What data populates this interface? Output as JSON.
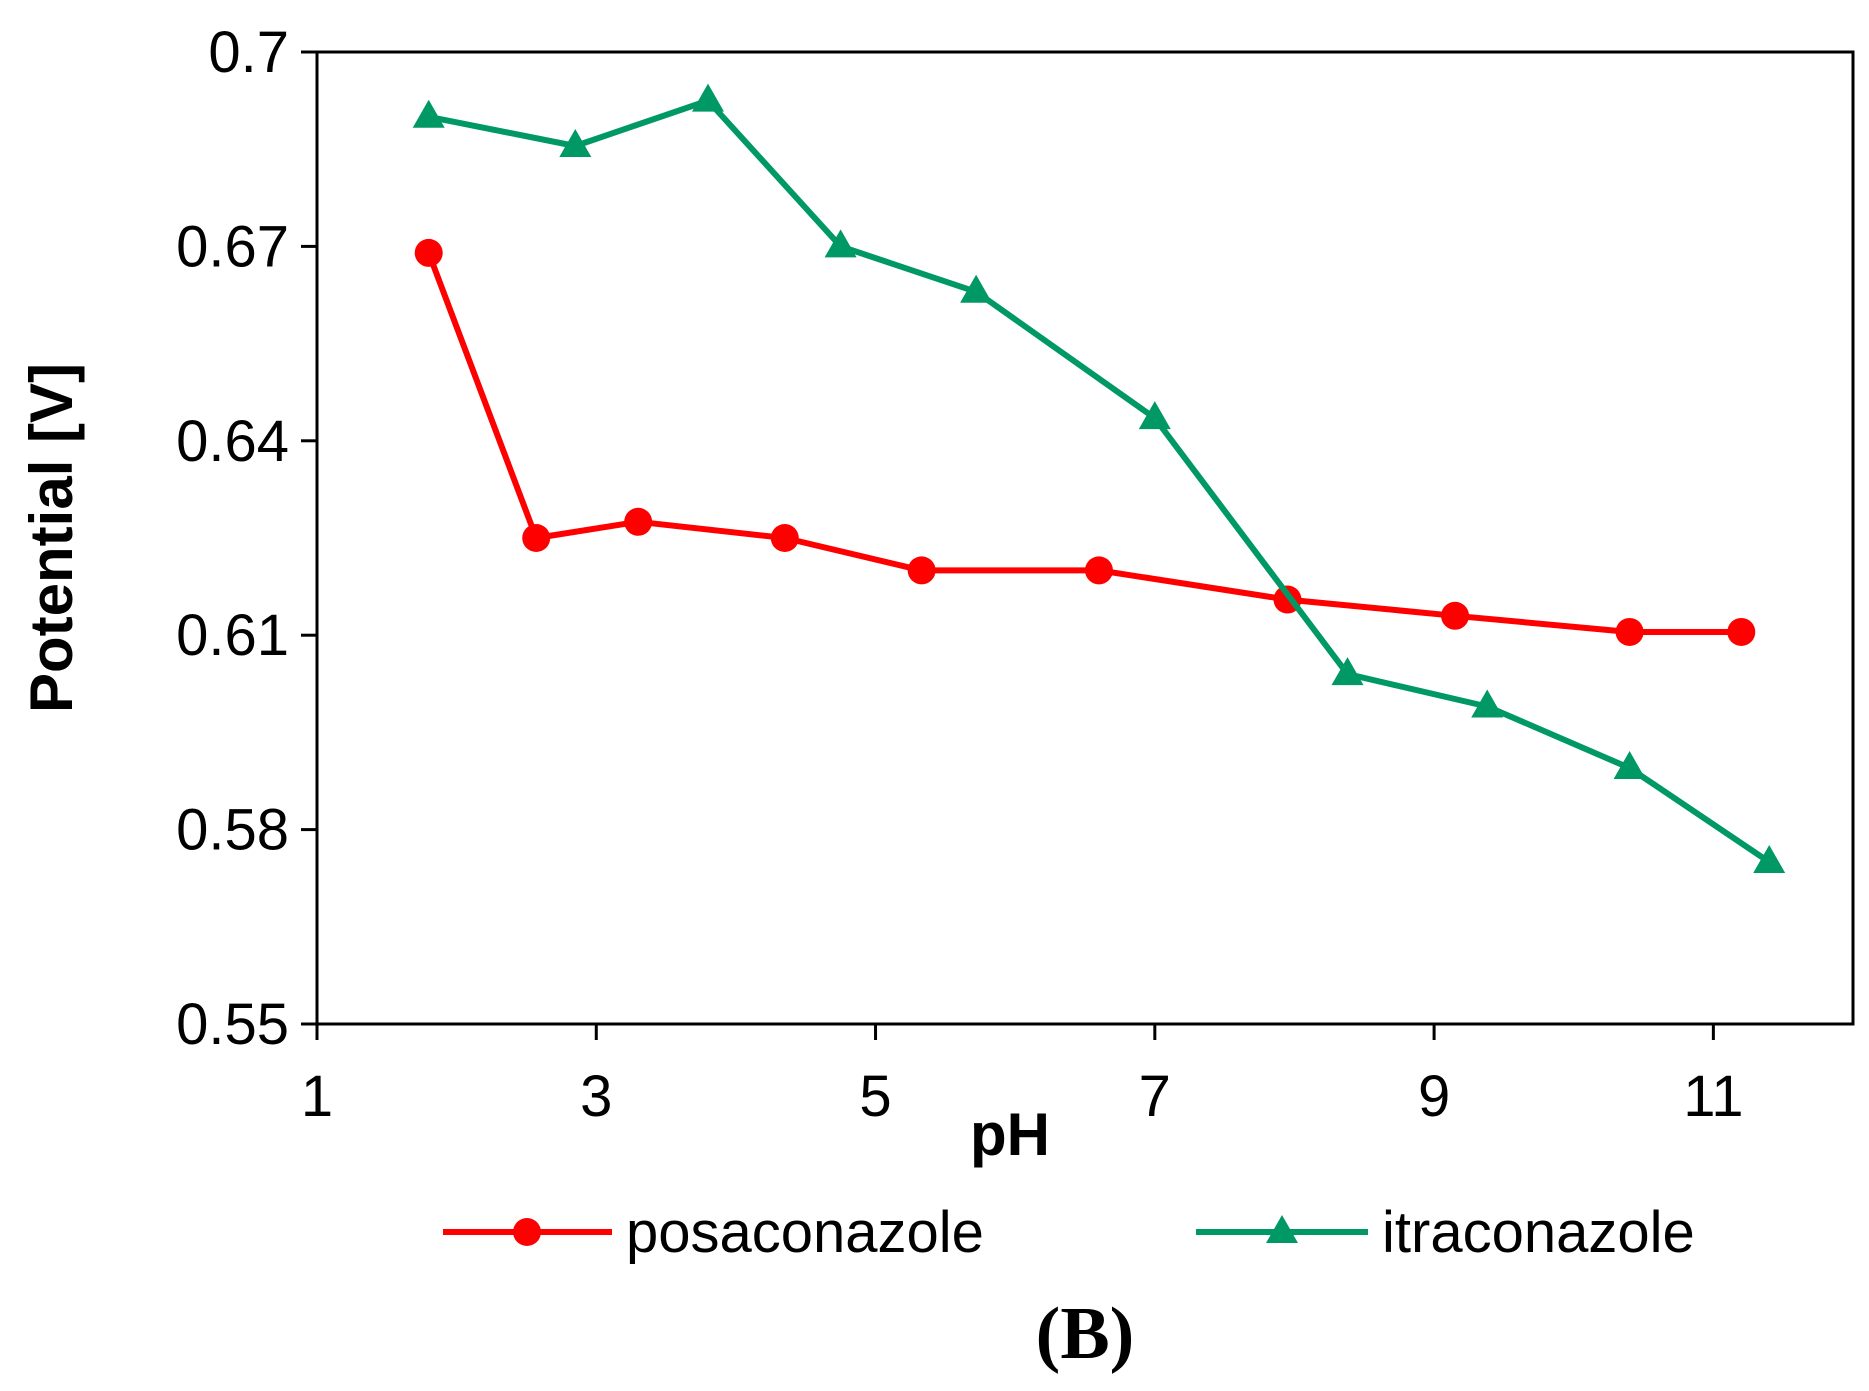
{
  "chart_data": {
    "type": "line",
    "title": "",
    "panel_label": "(B)",
    "xlabel": "pH",
    "ylabel": "Potential [V]",
    "xlim": [
      1,
      12
    ],
    "ylim": [
      0.55,
      0.7
    ],
    "x_ticks": [
      1,
      3,
      5,
      7,
      9,
      11
    ],
    "x_tick_labels": [
      "1",
      "3",
      "5",
      "7",
      "9",
      "11"
    ],
    "y_ticks": [
      0.55,
      0.58,
      0.61,
      0.64,
      0.67,
      0.7
    ],
    "y_tick_labels": [
      "0.55",
      "0.58",
      "0.61",
      "0.64",
      "0.67",
      "0.7"
    ],
    "grid": false,
    "legend_position": "bottom",
    "series": [
      {
        "name": "posaconazole",
        "color": "#ff0000",
        "marker": "circle",
        "x": [
          1.8,
          2.57,
          3.3,
          4.35,
          5.33,
          6.6,
          7.95,
          9.15,
          10.4,
          11.2
        ],
        "y": [
          0.669,
          0.625,
          0.6275,
          0.625,
          0.62,
          0.62,
          0.6155,
          0.613,
          0.6105,
          0.6105
        ]
      },
      {
        "name": "itraconazole",
        "color": "#009966",
        "marker": "triangle",
        "x": [
          1.8,
          2.85,
          3.8,
          4.75,
          5.72,
          7.0,
          8.38,
          9.38,
          10.4,
          11.4
        ],
        "y": [
          0.69,
          0.6855,
          0.6925,
          0.67,
          0.663,
          0.6435,
          0.604,
          0.599,
          0.5895,
          0.575
        ]
      }
    ]
  }
}
